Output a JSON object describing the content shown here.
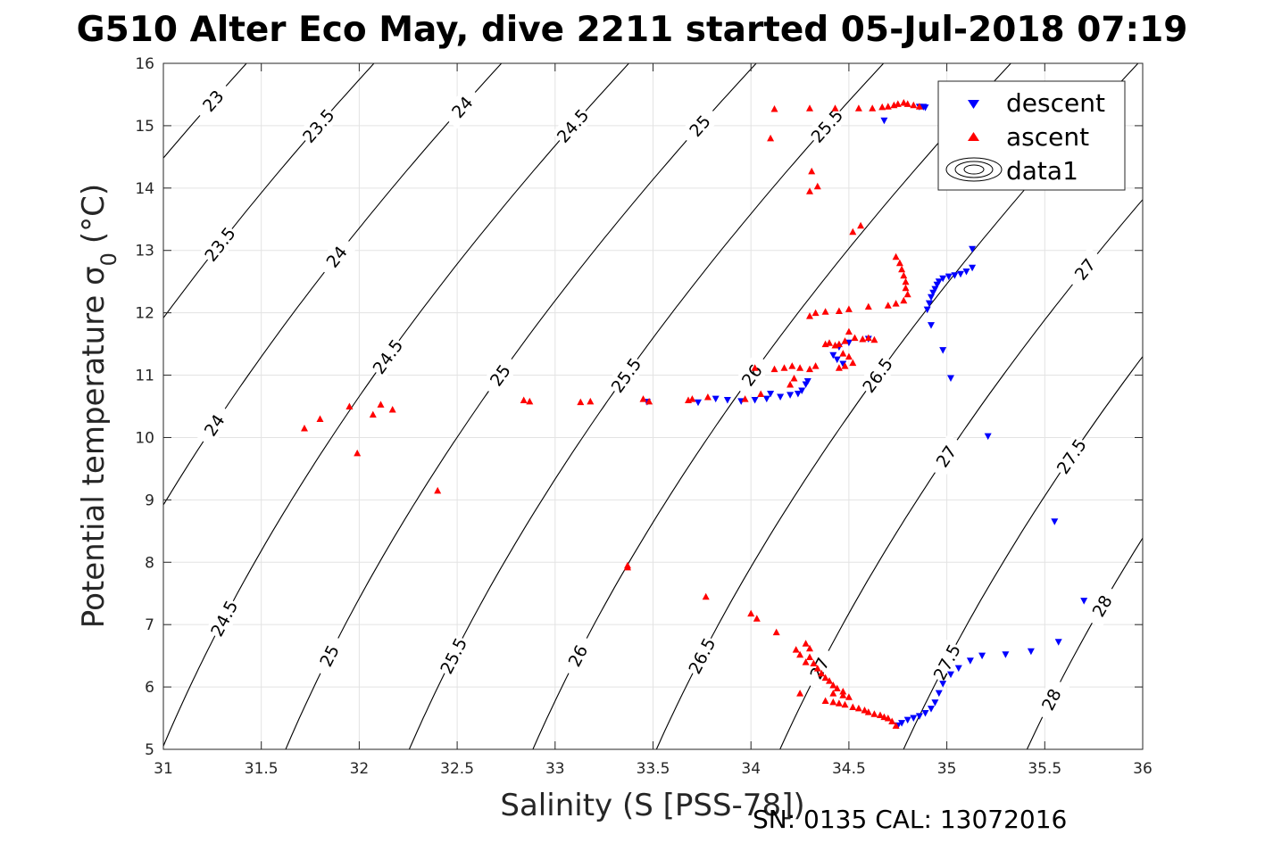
{
  "chart_data": {
    "type": "scatter",
    "title": "G510 Alter Eco May, dive 2211 started 05-Jul-2018 07:19",
    "xlabel": "Salinity (S [PSS-78])",
    "ylabel_main": "Potential temperature σ",
    "ylabel_sub": "0",
    "ylabel_unit": "(°C)",
    "footer": "SN: 0135  CAL: 13072016",
    "xlim": [
      31,
      36
    ],
    "ylim": [
      5,
      16
    ],
    "x_ticks": [
      31,
      31.5,
      32,
      32.5,
      33,
      33.5,
      34,
      34.5,
      35,
      35.5,
      36
    ],
    "y_ticks": [
      5,
      6,
      7,
      8,
      9,
      10,
      11,
      12,
      13,
      14,
      15,
      16
    ],
    "x_tick_labels": [
      "31",
      "31.5",
      "32",
      "32.5",
      "33",
      "33.5",
      "34",
      "34.5",
      "35",
      "35.5",
      "36"
    ],
    "y_tick_labels": [
      "5",
      "6",
      "7",
      "8",
      "9",
      "10",
      "11",
      "12",
      "13",
      "14",
      "15",
      "16"
    ],
    "grid": true,
    "legend_position": "top-right",
    "legend": [
      "descent",
      "ascent",
      "data1"
    ],
    "series": [
      {
        "name": "descent",
        "marker": "down-triangle",
        "color": "#0000ff",
        "points": [
          [
            34.68,
            15.08
          ],
          [
            34.86,
            15.3
          ],
          [
            34.88,
            15.3
          ],
          [
            34.89,
            15.29
          ],
          [
            34.9,
            12.05
          ],
          [
            34.91,
            12.15
          ],
          [
            34.92,
            12.25
          ],
          [
            34.93,
            12.32
          ],
          [
            34.94,
            12.38
          ],
          [
            34.95,
            12.45
          ],
          [
            34.96,
            12.5
          ],
          [
            34.98,
            12.55
          ],
          [
            35.01,
            12.58
          ],
          [
            35.04,
            12.6
          ],
          [
            35.07,
            12.62
          ],
          [
            35.1,
            12.66
          ],
          [
            35.13,
            12.72
          ],
          [
            35.13,
            13.02
          ],
          [
            34.92,
            11.8
          ],
          [
            34.98,
            11.4
          ],
          [
            35.02,
            10.95
          ],
          [
            35.21,
            10.02
          ],
          [
            34.6,
            11.58
          ],
          [
            34.5,
            11.52
          ],
          [
            34.45,
            11.45
          ],
          [
            34.42,
            11.32
          ],
          [
            34.44,
            11.25
          ],
          [
            34.47,
            11.18
          ],
          [
            34.29,
            10.9
          ],
          [
            34.28,
            10.85
          ],
          [
            34.26,
            10.75
          ],
          [
            34.24,
            10.7
          ],
          [
            34.2,
            10.68
          ],
          [
            34.15,
            10.65
          ],
          [
            34.1,
            10.7
          ],
          [
            34.08,
            10.62
          ],
          [
            34.02,
            10.6
          ],
          [
            33.95,
            10.58
          ],
          [
            33.88,
            10.6
          ],
          [
            33.82,
            10.62
          ],
          [
            33.73,
            10.56
          ],
          [
            33.47,
            10.57
          ],
          [
            34.75,
            5.38
          ],
          [
            34.77,
            5.42
          ],
          [
            34.8,
            5.47
          ],
          [
            34.83,
            5.5
          ],
          [
            34.86,
            5.53
          ],
          [
            34.89,
            5.58
          ],
          [
            34.92,
            5.65
          ],
          [
            34.94,
            5.75
          ],
          [
            34.96,
            5.9
          ],
          [
            34.98,
            6.05
          ],
          [
            35.02,
            6.2
          ],
          [
            35.06,
            6.3
          ],
          [
            35.12,
            6.42
          ],
          [
            35.18,
            6.5
          ],
          [
            35.3,
            6.52
          ],
          [
            35.43,
            6.57
          ],
          [
            35.57,
            6.72
          ],
          [
            35.7,
            7.38
          ],
          [
            35.55,
            8.65
          ]
        ]
      },
      {
        "name": "ascent",
        "marker": "up-triangle",
        "color": "#ff0000",
        "points": [
          [
            34.1,
            14.8
          ],
          [
            34.12,
            15.27
          ],
          [
            34.3,
            15.28
          ],
          [
            34.43,
            15.28
          ],
          [
            34.55,
            15.28
          ],
          [
            34.62,
            15.28
          ],
          [
            34.67,
            15.3
          ],
          [
            34.7,
            15.31
          ],
          [
            34.73,
            15.33
          ],
          [
            34.75,
            15.35
          ],
          [
            34.78,
            15.37
          ],
          [
            34.8,
            15.35
          ],
          [
            34.83,
            15.33
          ],
          [
            34.86,
            15.31
          ],
          [
            34.31,
            14.27
          ],
          [
            34.3,
            13.95
          ],
          [
            34.34,
            14.03
          ],
          [
            34.52,
            13.3
          ],
          [
            34.56,
            13.4
          ],
          [
            34.74,
            12.9
          ],
          [
            34.76,
            12.8
          ],
          [
            34.77,
            12.7
          ],
          [
            34.78,
            12.6
          ],
          [
            34.79,
            12.5
          ],
          [
            34.79,
            12.4
          ],
          [
            34.8,
            12.3
          ],
          [
            34.78,
            12.2
          ],
          [
            34.74,
            12.15
          ],
          [
            34.7,
            12.12
          ],
          [
            34.6,
            12.1
          ],
          [
            34.5,
            12.06
          ],
          [
            34.45,
            12.03
          ],
          [
            34.38,
            12.02
          ],
          [
            34.33,
            12.0
          ],
          [
            34.3,
            11.95
          ],
          [
            34.5,
            11.7
          ],
          [
            34.53,
            11.6
          ],
          [
            34.57,
            11.58
          ],
          [
            34.6,
            11.6
          ],
          [
            34.63,
            11.57
          ],
          [
            34.48,
            11.55
          ],
          [
            34.45,
            11.5
          ],
          [
            34.43,
            11.48
          ],
          [
            34.4,
            11.52
          ],
          [
            34.38,
            11.5
          ],
          [
            34.47,
            11.35
          ],
          [
            34.5,
            11.3
          ],
          [
            34.52,
            11.2
          ],
          [
            34.48,
            11.15
          ],
          [
            34.45,
            11.12
          ],
          [
            34.33,
            11.15
          ],
          [
            34.3,
            11.1
          ],
          [
            34.25,
            11.12
          ],
          [
            34.21,
            11.15
          ],
          [
            34.17,
            11.12
          ],
          [
            34.12,
            11.1
          ],
          [
            34.02,
            11.12
          ],
          [
            34.22,
            10.95
          ],
          [
            34.2,
            10.85
          ],
          [
            34.05,
            10.7
          ],
          [
            33.97,
            10.62
          ],
          [
            33.78,
            10.65
          ],
          [
            33.7,
            10.62
          ],
          [
            33.68,
            10.6
          ],
          [
            33.45,
            10.62
          ],
          [
            33.48,
            10.58
          ],
          [
            33.18,
            10.58
          ],
          [
            33.13,
            10.57
          ],
          [
            32.87,
            10.58
          ],
          [
            32.84,
            10.6
          ],
          [
            31.72,
            10.15
          ],
          [
            31.8,
            10.3
          ],
          [
            31.95,
            10.5
          ],
          [
            32.07,
            10.37
          ],
          [
            32.11,
            10.53
          ],
          [
            32.17,
            10.45
          ],
          [
            31.99,
            9.75
          ],
          [
            32.4,
            9.15
          ],
          [
            33.37,
            7.95
          ],
          [
            33.37,
            7.92
          ],
          [
            33.77,
            7.45
          ],
          [
            34.0,
            7.18
          ],
          [
            34.03,
            7.1
          ],
          [
            34.13,
            6.88
          ],
          [
            34.23,
            6.6
          ],
          [
            34.25,
            6.52
          ],
          [
            34.28,
            6.7
          ],
          [
            34.3,
            6.62
          ],
          [
            34.3,
            6.48
          ],
          [
            34.28,
            6.4
          ],
          [
            34.32,
            6.38
          ],
          [
            34.34,
            6.3
          ],
          [
            34.36,
            6.22
          ],
          [
            34.38,
            6.15
          ],
          [
            34.4,
            6.1
          ],
          [
            34.42,
            6.03
          ],
          [
            34.44,
            5.98
          ],
          [
            34.47,
            5.93
          ],
          [
            34.42,
            5.9
          ],
          [
            34.47,
            5.87
          ],
          [
            34.5,
            5.84
          ],
          [
            34.25,
            5.9
          ],
          [
            34.38,
            5.78
          ],
          [
            34.42,
            5.76
          ],
          [
            34.45,
            5.74
          ],
          [
            34.48,
            5.72
          ],
          [
            34.52,
            5.68
          ],
          [
            34.55,
            5.66
          ],
          [
            34.58,
            5.63
          ],
          [
            34.6,
            5.6
          ],
          [
            34.63,
            5.57
          ],
          [
            34.66,
            5.55
          ],
          [
            34.68,
            5.52
          ],
          [
            34.7,
            5.5
          ],
          [
            34.72,
            5.45
          ],
          [
            34.74,
            5.38
          ]
        ]
      }
    ],
    "isopycnals": [
      {
        "sigma": 23,
        "label": "23"
      },
      {
        "sigma": 23.5,
        "label": "23.5"
      },
      {
        "sigma": 24,
        "label": "24"
      },
      {
        "sigma": 24.5,
        "label": "24.5"
      },
      {
        "sigma": 25,
        "label": "25"
      },
      {
        "sigma": 25.5,
        "label": "25.5"
      },
      {
        "sigma": 26,
        "label": "26"
      },
      {
        "sigma": 26.5,
        "label": "26.5"
      },
      {
        "sigma": 27,
        "label": "27"
      },
      {
        "sigma": 27.5,
        "label": "27.5"
      },
      {
        "sigma": 28,
        "label": "28"
      }
    ]
  }
}
